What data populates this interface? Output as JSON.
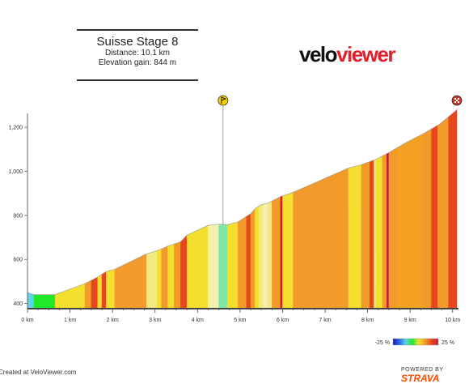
{
  "header": {
    "title": "Suisse Stage 8",
    "distance": "Distance: 10.1 km",
    "elevation": "Elevation gain: 844 m"
  },
  "logo": {
    "part1": "velo",
    "part2": "viewer"
  },
  "footer": {
    "credit": "Created at VeloViewer.com",
    "powered": "POWERED BY",
    "brand": "STRAVA"
  },
  "colors": {
    "accent": "#e0202a",
    "strava": "#fc4c02",
    "axis": "#444444"
  },
  "chart_data": {
    "type": "area",
    "xlabel": "",
    "ylabel": "",
    "xlim": [
      0,
      10.1
    ],
    "ylim": [
      380,
      1300
    ],
    "x_ticks": [
      0,
      1,
      2,
      3,
      4,
      5,
      6,
      7,
      8,
      9,
      10
    ],
    "x_tick_labels": [
      "0 km",
      "1 km",
      "2 km",
      "3 km",
      "4 km",
      "5 km",
      "6 km",
      "7 km",
      "8 km",
      "9 km",
      "10 km"
    ],
    "y_ticks": [
      400,
      600,
      800,
      1000,
      1200
    ],
    "y_tick_labels": [
      "400",
      "600",
      "800",
      "1,000",
      "1,200"
    ],
    "profile": [
      {
        "x": 0.0,
        "y": 450
      },
      {
        "x": 0.15,
        "y": 440
      },
      {
        "x": 0.65,
        "y": 440
      },
      {
        "x": 1.35,
        "y": 490
      },
      {
        "x": 1.65,
        "y": 520
      },
      {
        "x": 1.85,
        "y": 545
      },
      {
        "x": 2.05,
        "y": 555
      },
      {
        "x": 2.8,
        "y": 625
      },
      {
        "x": 3.05,
        "y": 640
      },
      {
        "x": 3.3,
        "y": 660
      },
      {
        "x": 3.6,
        "y": 680
      },
      {
        "x": 3.75,
        "y": 710
      },
      {
        "x": 4.25,
        "y": 755
      },
      {
        "x": 4.5,
        "y": 760
      },
      {
        "x": 4.7,
        "y": 758
      },
      {
        "x": 4.95,
        "y": 770
      },
      {
        "x": 5.25,
        "y": 808
      },
      {
        "x": 5.35,
        "y": 830
      },
      {
        "x": 5.5,
        "y": 850
      },
      {
        "x": 5.65,
        "y": 855
      },
      {
        "x": 5.95,
        "y": 885
      },
      {
        "x": 6.25,
        "y": 905
      },
      {
        "x": 7.55,
        "y": 1015
      },
      {
        "x": 7.85,
        "y": 1030
      },
      {
        "x": 8.2,
        "y": 1055
      },
      {
        "x": 8.5,
        "y": 1085
      },
      {
        "x": 8.9,
        "y": 1130
      },
      {
        "x": 9.3,
        "y": 1170
      },
      {
        "x": 9.7,
        "y": 1215
      },
      {
        "x": 10.1,
        "y": 1280
      }
    ],
    "segments": [
      {
        "from": 0.0,
        "to": 0.15,
        "color": "#5ad6e6"
      },
      {
        "from": 0.15,
        "to": 0.65,
        "color": "#22e82a"
      },
      {
        "from": 0.65,
        "to": 1.35,
        "color": "#f4df2e"
      },
      {
        "from": 1.35,
        "to": 1.5,
        "color": "#f29a2a"
      },
      {
        "from": 1.5,
        "to": 1.65,
        "color": "#e8461e"
      },
      {
        "from": 1.65,
        "to": 1.75,
        "color": "#f4df2e"
      },
      {
        "from": 1.75,
        "to": 1.85,
        "color": "#e8461e"
      },
      {
        "from": 1.85,
        "to": 2.05,
        "color": "#f4df2e"
      },
      {
        "from": 2.05,
        "to": 2.8,
        "color": "#f29a2a"
      },
      {
        "from": 2.8,
        "to": 3.05,
        "color": "#f2ea80"
      },
      {
        "from": 3.05,
        "to": 3.15,
        "color": "#f4df2e"
      },
      {
        "from": 3.15,
        "to": 3.3,
        "color": "#f29a2a"
      },
      {
        "from": 3.3,
        "to": 3.45,
        "color": "#f4df2e"
      },
      {
        "from": 3.45,
        "to": 3.6,
        "color": "#f29a2a"
      },
      {
        "from": 3.6,
        "to": 3.75,
        "color": "#e8461e"
      },
      {
        "from": 3.75,
        "to": 4.25,
        "color": "#f4df2e"
      },
      {
        "from": 4.25,
        "to": 4.5,
        "color": "#f5f0b0"
      },
      {
        "from": 4.5,
        "to": 4.7,
        "color": "#7de8a8"
      },
      {
        "from": 4.7,
        "to": 4.95,
        "color": "#f4df2e"
      },
      {
        "from": 4.95,
        "to": 5.15,
        "color": "#f29a2a"
      },
      {
        "from": 5.15,
        "to": 5.25,
        "color": "#e8461e"
      },
      {
        "from": 5.25,
        "to": 5.35,
        "color": "#f29a2a"
      },
      {
        "from": 5.35,
        "to": 5.45,
        "color": "#f4df2e"
      },
      {
        "from": 5.45,
        "to": 5.55,
        "color": "#f2ea80"
      },
      {
        "from": 5.55,
        "to": 5.65,
        "color": "#f5f0b0"
      },
      {
        "from": 5.65,
        "to": 5.75,
        "color": "#f2ea80"
      },
      {
        "from": 5.75,
        "to": 5.95,
        "color": "#f29a2a"
      },
      {
        "from": 5.95,
        "to": 6.0,
        "color": "#d61e1e"
      },
      {
        "from": 6.0,
        "to": 6.25,
        "color": "#f4df2e"
      },
      {
        "from": 6.25,
        "to": 7.55,
        "color": "#f29a2a"
      },
      {
        "from": 7.55,
        "to": 7.85,
        "color": "#f4df2e"
      },
      {
        "from": 7.85,
        "to": 8.05,
        "color": "#f29a2a"
      },
      {
        "from": 8.05,
        "to": 8.15,
        "color": "#e8461e"
      },
      {
        "from": 8.15,
        "to": 8.2,
        "color": "#f2ea80"
      },
      {
        "from": 8.2,
        "to": 8.35,
        "color": "#f4df2e"
      },
      {
        "from": 8.35,
        "to": 8.45,
        "color": "#f29a2a"
      },
      {
        "from": 8.45,
        "to": 8.5,
        "color": "#c41a3a"
      },
      {
        "from": 8.5,
        "to": 8.7,
        "color": "#f29a2a"
      },
      {
        "from": 8.7,
        "to": 9.3,
        "color": "#f4a020"
      },
      {
        "from": 9.3,
        "to": 9.5,
        "color": "#f29a2a"
      },
      {
        "from": 9.5,
        "to": 9.65,
        "color": "#e8461e"
      },
      {
        "from": 9.65,
        "to": 9.9,
        "color": "#f29a2a"
      },
      {
        "from": 9.9,
        "to": 10.1,
        "color": "#e8461e"
      }
    ],
    "markers": [
      {
        "name": "start-marker",
        "x": 4.6,
        "color": "#f4d000"
      },
      {
        "name": "finish-marker",
        "x": 10.1,
        "color": "#c0392b"
      }
    ],
    "legend": {
      "min_label": "-25 %",
      "max_label": "25 %",
      "gradient": [
        "#1a1aa8",
        "#2a6ae8",
        "#5ad6e6",
        "#22e82a",
        "#f4df2e",
        "#f29a2a",
        "#e8461e",
        "#c41a3a"
      ]
    }
  }
}
